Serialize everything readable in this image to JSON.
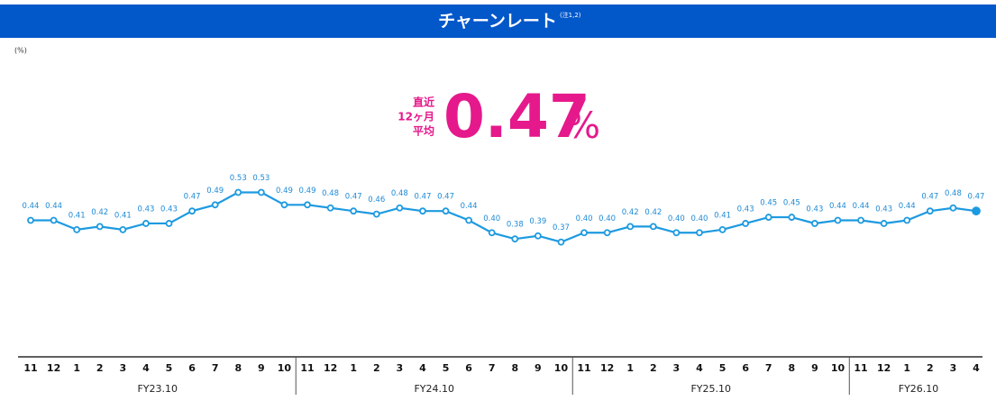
{
  "title": "チャーンレート",
  "title_note": "(注1,2)",
  "unit": "(%)",
  "headline": {
    "label_lines": [
      "直近",
      "12ヶ月",
      "平均"
    ],
    "value": "0.47",
    "suffix": "%"
  },
  "chart_data": {
    "type": "line",
    "color": "#1d9ae0",
    "label_color": "#1d8ad6",
    "highlight_last": true,
    "ylim": [
      0,
      0.7
    ],
    "groups": [
      {
        "name": "FY23.10",
        "months": [
          "11",
          "12",
          "1",
          "2",
          "3",
          "4",
          "5",
          "6",
          "7",
          "8",
          "9",
          "10"
        ],
        "values": [
          0.44,
          0.44,
          0.41,
          0.42,
          0.41,
          0.43,
          0.43,
          0.47,
          0.49,
          0.53,
          0.53,
          0.49
        ],
        "value_labels": [
          "0.44",
          "0.44",
          "0.41",
          "0.42",
          "0.41",
          "0.43",
          "0.43",
          "0.47",
          "0.49",
          "0.53",
          "0.53",
          "0.49"
        ]
      },
      {
        "name": "FY24.10",
        "months": [
          "11",
          "12",
          "1",
          "2",
          "3",
          "4",
          "5",
          "6",
          "7",
          "8",
          "9",
          "10"
        ],
        "values": [
          0.49,
          0.48,
          0.47,
          0.46,
          0.48,
          0.47,
          0.47,
          0.44,
          0.4,
          0.38,
          0.39,
          0.37
        ],
        "value_labels": [
          "0.49",
          "0.48",
          "0.47",
          "0.46",
          "0.48",
          "0.47",
          "0.47",
          "0.44",
          "0.40",
          "0.38",
          "0.39",
          "0.37"
        ]
      },
      {
        "name": "FY25.10",
        "months": [
          "11",
          "12",
          "1",
          "2",
          "3",
          "4",
          "5",
          "6",
          "7",
          "8",
          "9",
          "10"
        ],
        "values": [
          0.4,
          0.4,
          0.42,
          0.42,
          0.4,
          0.4,
          0.41,
          0.43,
          0.45,
          0.45,
          0.43,
          0.44
        ],
        "value_labels": [
          "0.40",
          "0.40",
          "0.42",
          "0.42",
          "0.40",
          "0.40",
          "0.41",
          "0.43",
          "0.45",
          "0.45",
          "0.43",
          "0.44"
        ]
      },
      {
        "name": "FY26.10",
        "months": [
          "11",
          "12",
          "1",
          "2",
          "3",
          "4"
        ],
        "values": [
          0.44,
          0.43,
          0.44,
          0.47,
          0.48,
          0.47
        ],
        "value_labels": [
          "0.44",
          "0.43",
          "0.44",
          "0.47",
          "0.48",
          "0.47"
        ]
      }
    ]
  }
}
